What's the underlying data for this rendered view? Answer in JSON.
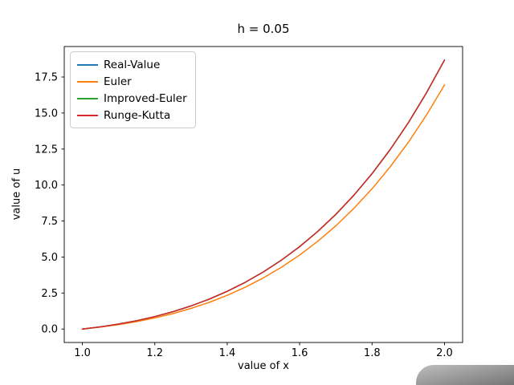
{
  "figure": {
    "background": "#ffffff",
    "axes_edge_color": "#000000"
  },
  "chart_data": {
    "type": "line",
    "title": "h = 0.05",
    "xlabel": "value of x",
    "ylabel": "value of u",
    "xlim": [
      0.95,
      2.05
    ],
    "ylim": [
      -0.934,
      19.617
    ],
    "xticks": [
      1.0,
      1.2,
      1.4,
      1.6,
      1.8,
      2.0
    ],
    "yticks": [
      0.0,
      2.5,
      5.0,
      7.5,
      10.0,
      12.5,
      15.0,
      17.5
    ],
    "grid": false,
    "legend_position": "upper-left",
    "x": [
      1.0,
      1.05,
      1.1,
      1.15,
      1.2,
      1.25,
      1.3,
      1.35,
      1.4,
      1.45,
      1.5,
      1.55,
      1.6,
      1.65,
      1.7,
      1.75,
      1.8,
      1.85,
      1.9,
      1.95,
      2.0
    ],
    "series": [
      {
        "name": "Real-Value",
        "color": "#1f77b4",
        "values": [
          0.0,
          0.154,
          0.346,
          0.582,
          0.867,
          1.206,
          1.607,
          2.076,
          2.62,
          3.248,
          3.968,
          4.789,
          5.721,
          6.775,
          7.964,
          9.299,
          10.794,
          12.463,
          14.323,
          16.39,
          18.683
        ]
      },
      {
        "name": "Euler",
        "color": "#ff7f0e",
        "values": [
          0.0,
          0.136,
          0.306,
          0.516,
          0.77,
          1.073,
          1.431,
          1.852,
          2.34,
          2.905,
          3.553,
          4.294,
          5.137,
          6.092,
          7.17,
          8.383,
          9.743,
          11.265,
          12.962,
          14.851,
          16.949
        ]
      },
      {
        "name": "Improved-Euler",
        "color": "#2ca02c",
        "values": [
          0.0,
          0.154,
          0.346,
          0.581,
          0.866,
          1.206,
          1.606,
          2.075,
          2.619,
          3.247,
          3.966,
          4.787,
          5.719,
          6.773,
          7.962,
          9.296,
          10.791,
          12.46,
          14.32,
          16.386,
          18.679
        ]
      },
      {
        "name": "Runge-Kutta",
        "color": "#d62728",
        "values": [
          0.0,
          0.154,
          0.346,
          0.582,
          0.867,
          1.206,
          1.607,
          2.076,
          2.62,
          3.248,
          3.968,
          4.789,
          5.721,
          6.775,
          7.964,
          9.299,
          10.794,
          12.463,
          14.323,
          16.39,
          18.683
        ]
      }
    ]
  }
}
